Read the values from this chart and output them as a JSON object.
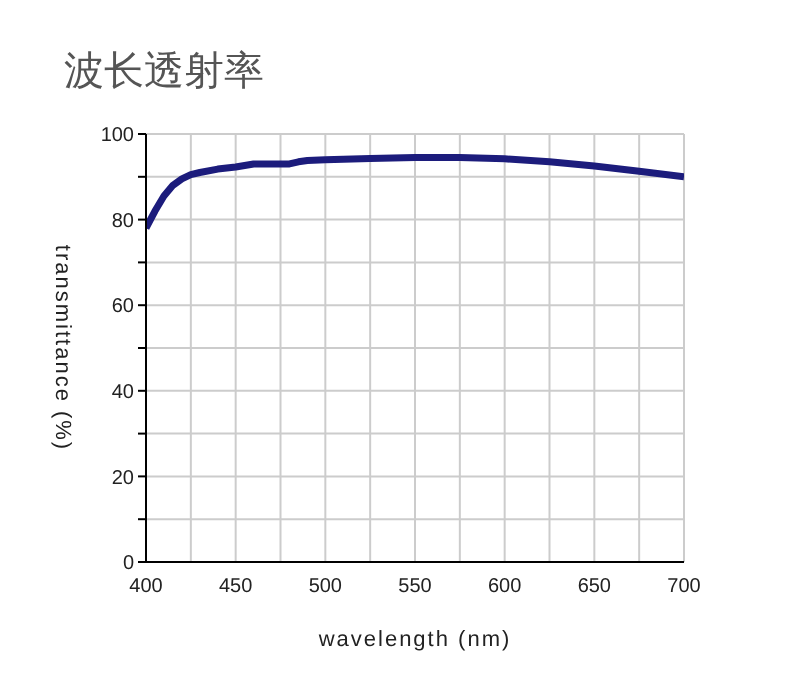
{
  "chart_data": {
    "type": "line",
    "title": "波长透射率",
    "xlabel": "wavelength (nm)",
    "ylabel": "transmittance (%)",
    "x": [
      400,
      405,
      410,
      415,
      420,
      425,
      430,
      440,
      450,
      460,
      470,
      480,
      485,
      490,
      500,
      525,
      550,
      575,
      600,
      625,
      650,
      675,
      700
    ],
    "series": [
      {
        "color": "#1c1c7c",
        "values": [
          78,
          82,
          85.5,
          88,
          89.5,
          90.5,
          91,
          91.8,
          92.3,
          93,
          93,
          93,
          93.5,
          93.8,
          94,
          94.3,
          94.5,
          94.5,
          94.2,
          93.5,
          92.5,
          91.3,
          90
        ]
      }
    ],
    "xlim": [
      400,
      700
    ],
    "ylim": [
      0,
      100
    ],
    "xticks": [
      400,
      {
        "value": 425,
        "label": null
      },
      450,
      {
        "value": 475,
        "label": null
      },
      500,
      {
        "value": 525,
        "label": null
      },
      550,
      {
        "value": 575,
        "label": null
      },
      600,
      {
        "value": 625,
        "label": null
      },
      650,
      {
        "value": 675,
        "label": null
      },
      700
    ],
    "yticks": [
      0,
      {
        "value": 10,
        "label": null
      },
      20,
      {
        "value": 30,
        "label": null
      },
      40,
      {
        "value": 50,
        "label": null
      },
      60,
      {
        "value": 70,
        "label": null
      },
      80,
      {
        "value": 90,
        "label": null
      },
      100
    ],
    "grid": true,
    "legend": false,
    "marker": "none",
    "line_style": "solid"
  }
}
